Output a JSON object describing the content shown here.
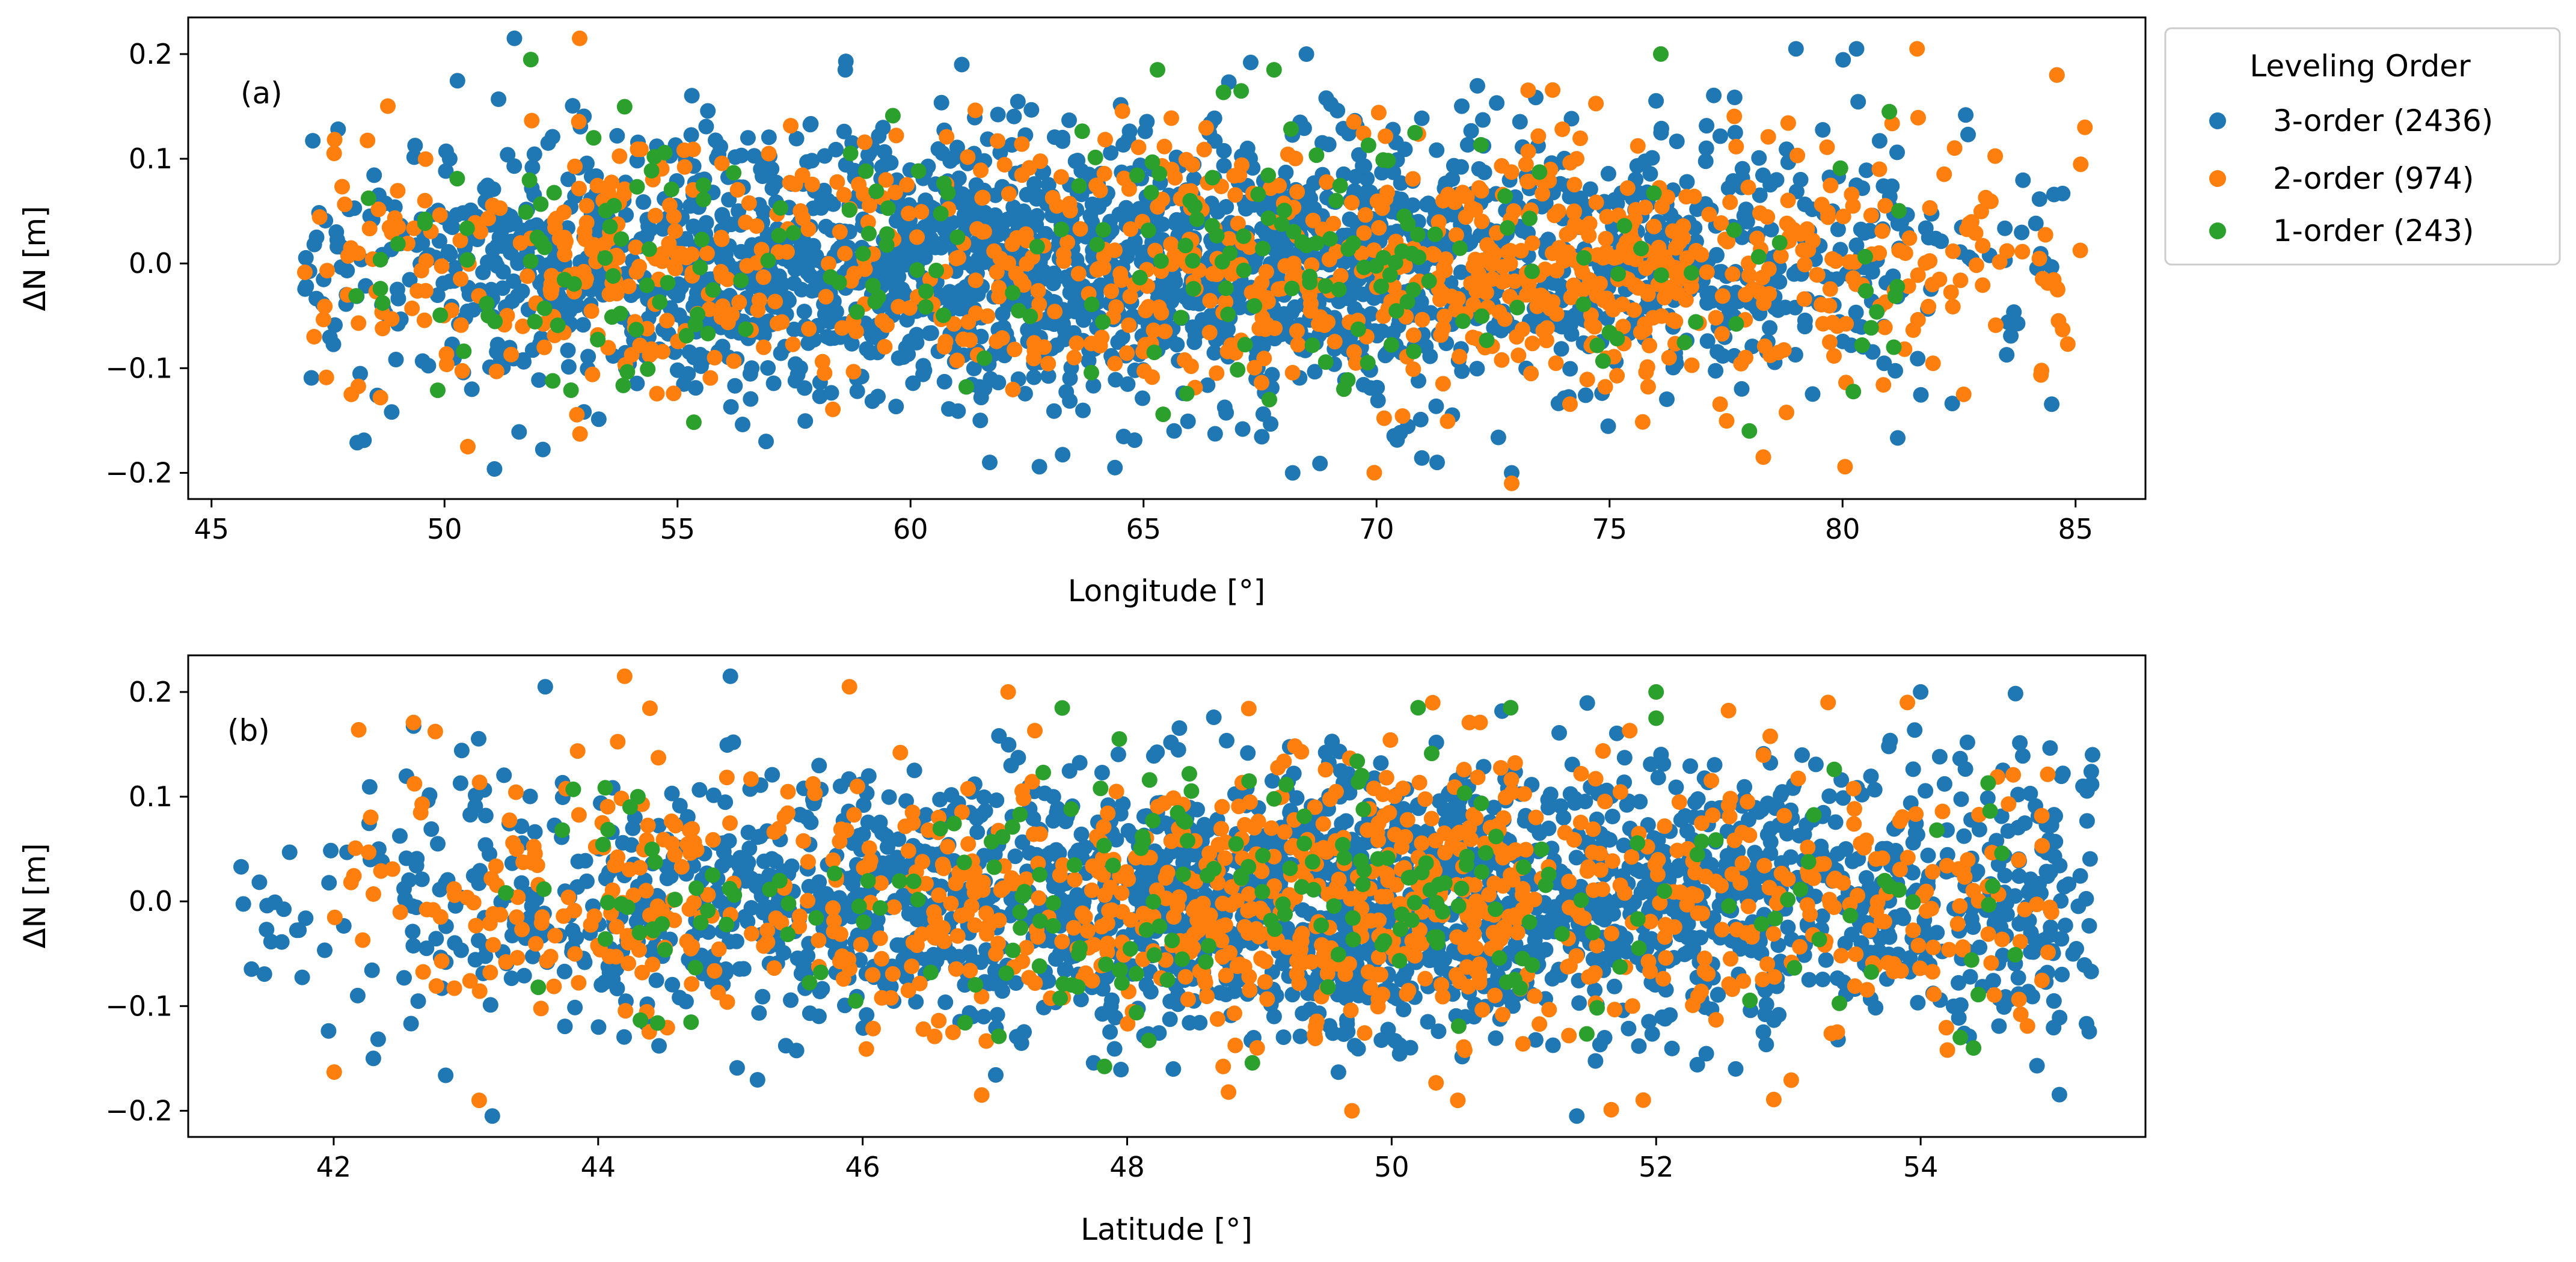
{
  "colors": {
    "order3": "#1f77b4",
    "order2": "#ff7f0e",
    "order1": "#2ca02c"
  },
  "legend": {
    "title": "Leveling Order",
    "entries": [
      "3-order (2436)",
      "2-order (974)",
      "1-order (243)"
    ]
  },
  "chart_data": [
    {
      "type": "scatter",
      "panel_label": "(a)",
      "xlabel": "Longitude [°]",
      "ylabel": "ΔN [m]",
      "xlim": [
        44.5,
        86.5
      ],
      "ylim": [
        -0.225,
        0.235
      ],
      "xticks": [
        45,
        50,
        55,
        60,
        65,
        70,
        75,
        80,
        85
      ],
      "xtick_labels": [
        "45",
        "50",
        "55",
        "60",
        "65",
        "70",
        "75",
        "80",
        "85"
      ],
      "yticks": [
        -0.2,
        -0.1,
        0.0,
        0.1,
        0.2
      ],
      "ytick_labels": [
        "−0.2",
        "−0.1",
        "0.0",
        "0.1",
        "0.2"
      ],
      "series": [
        {
          "name": "3-order (2436)",
          "color_key": "order3",
          "count": 2436,
          "x_range": [
            46.8,
            84.8
          ],
          "density": [
            [
              47,
              50,
              0.5
            ],
            [
              50,
              55,
              0.9
            ],
            [
              55,
              60,
              1.4
            ],
            [
              60,
              64,
              1.6
            ],
            [
              64,
              70,
              1.7
            ],
            [
              70,
              74,
              1.2
            ],
            [
              74,
              78,
              0.8
            ],
            [
              78,
              82,
              0.45
            ],
            [
              82,
              84.8,
              0.15
            ]
          ],
          "sample_points": [
            [
              51.5,
              0.215
            ],
            [
              58.6,
              0.185
            ],
            [
              61.1,
              0.19
            ],
            [
              67.3,
              0.192
            ],
            [
              79.0,
              0.205
            ],
            [
              80.3,
              0.205
            ],
            [
              68.2,
              -0.2
            ],
            [
              71.3,
              -0.19
            ],
            [
              72.9,
              -0.2
            ],
            [
              61.7,
              -0.19
            ],
            [
              56.9,
              -0.17
            ],
            [
              84.6,
              0.18
            ]
          ]
        },
        {
          "name": "2-order (974)",
          "color_key": "order2",
          "count": 974,
          "x_range": [
            46.8,
            85.2
          ],
          "density": [
            [
              46.8,
              52,
              0.6
            ],
            [
              52,
              56,
              1.3
            ],
            [
              56,
              61,
              0.9
            ],
            [
              61,
              66,
              1.0
            ],
            [
              66,
              72,
              1.3
            ],
            [
              72,
              77,
              1.7
            ],
            [
              77,
              81,
              0.9
            ],
            [
              81,
              85.2,
              0.5
            ]
          ],
          "sample_points": [
            [
              52.9,
              0.215
            ],
            [
              81.6,
              0.205
            ],
            [
              84.6,
              0.18
            ],
            [
              85.2,
              0.13
            ],
            [
              50.5,
              -0.175
            ],
            [
              72.9,
              -0.21
            ],
            [
              78.3,
              -0.185
            ],
            [
              48.0,
              -0.125
            ],
            [
              82.6,
              -0.125
            ]
          ]
        },
        {
          "name": "1-order (243)",
          "color_key": "order1",
          "count": 243,
          "x_range": [
            47.5,
            81.5
          ],
          "density": [
            [
              47.5,
              52,
              0.6
            ],
            [
              52,
              56,
              1.2
            ],
            [
              56,
              62,
              0.7
            ],
            [
              62,
              66,
              0.7
            ],
            [
              66,
              71,
              1.8
            ],
            [
              71,
              75,
              0.9
            ],
            [
              75,
              81.5,
              0.8
            ]
          ],
          "sample_points": [
            [
              67.8,
              0.185
            ],
            [
              65.3,
              0.185
            ],
            [
              76.1,
              0.2
            ],
            [
              53.2,
              0.12
            ],
            [
              67.7,
              -0.13
            ],
            [
              69.3,
              -0.12
            ],
            [
              78.0,
              -0.16
            ],
            [
              81.1,
              -0.08
            ]
          ]
        }
      ]
    },
    {
      "type": "scatter",
      "panel_label": "(b)",
      "xlabel": "Latitude [°]",
      "ylabel": "ΔN [m]",
      "xlim": [
        40.9,
        55.7
      ],
      "ylim": [
        -0.225,
        0.235
      ],
      "xticks": [
        42,
        44,
        46,
        48,
        50,
        52,
        54
      ],
      "xtick_labels": [
        "42",
        "44",
        "46",
        "48",
        "50",
        "52",
        "54"
      ],
      "yticks": [
        -0.2,
        -0.1,
        0.0,
        0.1,
        0.2
      ],
      "ytick_labels": [
        "−0.2",
        "−0.1",
        "0.0",
        "0.1",
        "0.2"
      ],
      "series": [
        {
          "name": "3-order (2436)",
          "color_key": "order3",
          "count": 2436,
          "x_range": [
            41.3,
            55.3
          ],
          "density": [
            [
              41.3,
              42.5,
              0.15
            ],
            [
              42.5,
              44,
              0.5
            ],
            [
              44,
              46,
              0.9
            ],
            [
              46,
              48,
              1.2
            ],
            [
              48,
              51,
              1.9
            ],
            [
              51,
              53,
              1.4
            ],
            [
              53,
              55.3,
              0.9
            ]
          ],
          "sample_points": [
            [
              41.3,
              0.033
            ],
            [
              43.6,
              0.205
            ],
            [
              45.0,
              0.215
            ],
            [
              54.0,
              0.2
            ],
            [
              51.4,
              -0.205
            ],
            [
              43.2,
              -0.205
            ],
            [
              55.3,
              0.14
            ],
            [
              42.3,
              -0.15
            ]
          ]
        },
        {
          "name": "2-order (974)",
          "color_key": "order2",
          "count": 974,
          "x_range": [
            42.0,
            55.0
          ],
          "density": [
            [
              42,
              43,
              0.4
            ],
            [
              43,
              44,
              0.8
            ],
            [
              44,
              46,
              0.9
            ],
            [
              46,
              48,
              1.1
            ],
            [
              48,
              51,
              1.9
            ],
            [
              51,
              53,
              0.8
            ],
            [
              53,
              55,
              0.7
            ]
          ],
          "sample_points": [
            [
              44.2,
              0.215
            ],
            [
              45.9,
              0.205
            ],
            [
              47.1,
              0.2
            ],
            [
              53.3,
              0.19
            ],
            [
              53.9,
              0.19
            ],
            [
              50.5,
              -0.19
            ],
            [
              49.7,
              -0.2
            ],
            [
              43.1,
              -0.19
            ],
            [
              46.9,
              -0.185
            ]
          ]
        },
        {
          "name": "1-order (243)",
          "color_key": "order1",
          "count": 243,
          "x_range": [
            43.2,
            54.8
          ],
          "density": [
            [
              43.2,
              44,
              0.5
            ],
            [
              44,
              45,
              1.5
            ],
            [
              45,
              47,
              0.7
            ],
            [
              47,
              51,
              1.8
            ],
            [
              51,
              53,
              0.6
            ],
            [
              53,
              54.8,
              0.6
            ]
          ],
          "sample_points": [
            [
              52.0,
              0.2
            ],
            [
              50.9,
              0.185
            ],
            [
              52.0,
              0.175
            ],
            [
              50.2,
              0.185
            ],
            [
              44.3,
              0.1
            ],
            [
              54.3,
              -0.13
            ],
            [
              54.4,
              -0.14
            ]
          ]
        }
      ]
    }
  ]
}
